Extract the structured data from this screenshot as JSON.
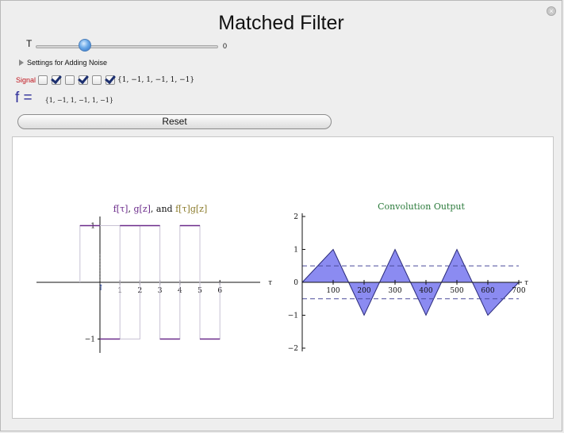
{
  "window": {
    "title": "Matched Filter"
  },
  "controls": {
    "slider": {
      "label": "T",
      "value": "0",
      "fraction": 0.25
    },
    "noise_settings_label": "Settings for Adding Noise",
    "signal": {
      "label": "Signal",
      "checkboxes": [
        false,
        true,
        false,
        true,
        false,
        true
      ],
      "vector": "{1, −1, 1, −1, 1, −1}"
    },
    "f": {
      "label": "f =",
      "vector": "{1, −1, 1, −1, 1, −1}"
    },
    "reset_label": "Reset"
  },
  "colors": {
    "signal_purple": "#6a2a8a",
    "product_olive": "#8a7a2a",
    "fill_blue": "#7777ee",
    "conv_title_green": "#2a7a3a"
  },
  "chart_data": [
    {
      "type": "line",
      "title_parts": [
        "f[τ]",
        ", ",
        "g[z]",
        ", and ",
        "f[τ]g[z]"
      ],
      "xlabel": "τ",
      "xlim": [
        -3,
        8
      ],
      "ylim": [
        -1.3,
        1.3
      ],
      "xticks": [
        1,
        2,
        3,
        4,
        5,
        6
      ],
      "yticks": [
        {
          "value": 1,
          "label": "1"
        },
        {
          "value": -1,
          "label": "−1"
        }
      ],
      "series": [
        {
          "x": [
            -1,
            0,
            0,
            1,
            1,
            2,
            2,
            3,
            3,
            4,
            4,
            5,
            5,
            6
          ],
          "y": [
            1,
            1,
            0,
            -1,
            1,
            1,
            -1,
            -1,
            1,
            1,
            -1,
            -1,
            -1,
            -1
          ]
        }
      ],
      "segments": [
        {
          "x0": -1,
          "x1": 0,
          "y": 1
        },
        {
          "x0": 0,
          "x1": 1,
          "y": -1
        },
        {
          "x0": 2,
          "x1": 3,
          "y": 1
        },
        {
          "x0": 3,
          "x1": 4,
          "y": -1
        },
        {
          "x0": 4,
          "x1": 5,
          "y": 1
        },
        {
          "x0": 5,
          "x1": 6,
          "y": -1
        },
        {
          "x0": 1,
          "x1": 2,
          "y": 1
        }
      ]
    },
    {
      "type": "area",
      "title": "Convolution Output",
      "xlabel": "τ",
      "xlim": [
        0,
        700
      ],
      "ylim": [
        -2,
        2
      ],
      "xticks": [
        100,
        200,
        300,
        400,
        500,
        600,
        700
      ],
      "yticks": [
        2,
        1,
        0,
        -1,
        -2
      ],
      "x": [
        0,
        100,
        150,
        200,
        250,
        300,
        350,
        400,
        450,
        500,
        550,
        600,
        700
      ],
      "y": [
        0,
        1,
        0,
        -1,
        0,
        1,
        0,
        -1,
        0,
        1,
        0,
        -1,
        0
      ],
      "thresholds": [
        0.5,
        -0.5
      ]
    }
  ]
}
